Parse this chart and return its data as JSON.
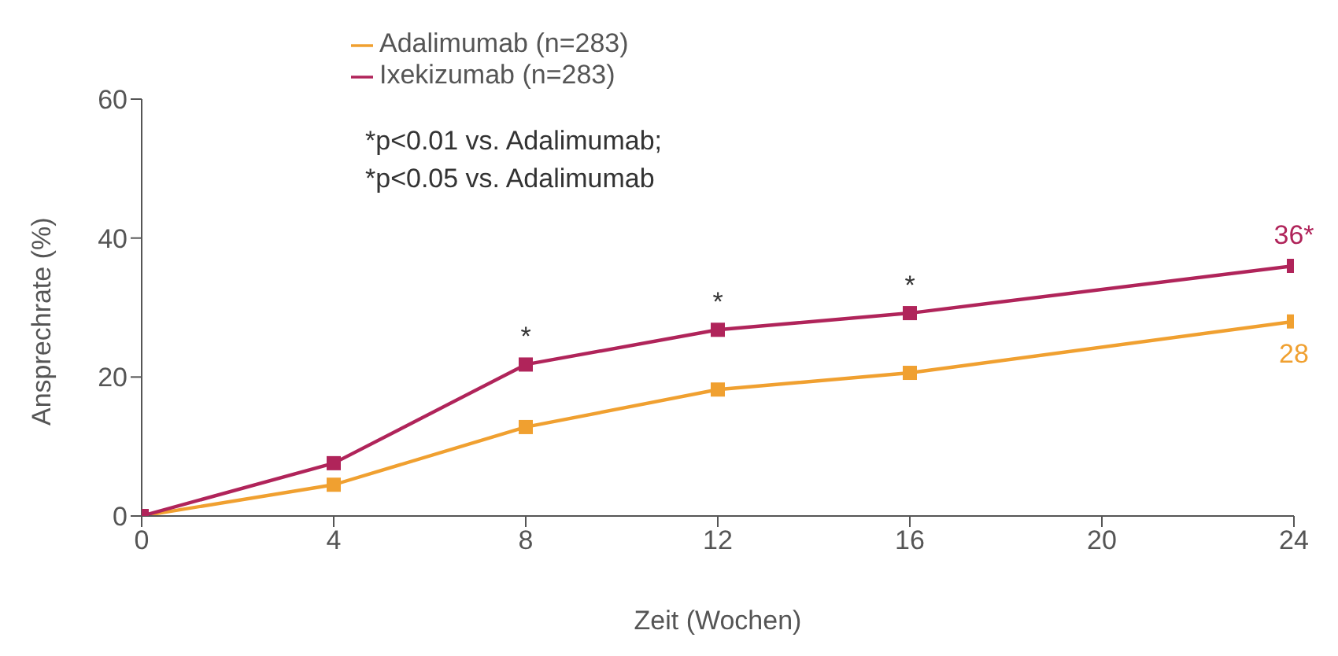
{
  "chart_data": {
    "type": "line",
    "xlabel": "Zeit (Wochen)",
    "ylabel": "Ansprechrate (%)",
    "x": [
      0,
      4,
      8,
      12,
      16,
      24
    ],
    "series": [
      {
        "name": "Adalimumab (n=283)",
        "color": "#f0a030",
        "values": [
          0,
          4.5,
          12.8,
          18.2,
          20.6,
          28
        ],
        "value_labels": [
          null,
          null,
          null,
          null,
          null,
          "28"
        ]
      },
      {
        "name": "Ixekizumab (n=283)",
        "color": "#b0245a",
        "values": [
          0,
          7.6,
          21.8,
          26.8,
          29.2,
          36
        ],
        "value_labels": [
          null,
          null,
          null,
          null,
          null,
          "36*"
        ]
      }
    ],
    "xlim": [
      0,
      24
    ],
    "xticks": [
      0,
      4,
      8,
      12,
      16,
      20,
      24
    ],
    "ylim": [
      0,
      60
    ],
    "yticks": [
      0,
      20,
      40,
      60
    ],
    "grid": false,
    "legend": "top left",
    "marker": "square",
    "line_style": "solid",
    "annotations": [
      "*p<0.01 vs. Adalimumab;",
      "*p<0.05 vs. Adalimumab",
      {
        "text": "*",
        "x": 8,
        "y": 21.8
      },
      {
        "text": "*",
        "x": 12,
        "y": 26.8
      },
      {
        "text": "*",
        "x": 16,
        "y": 29.2
      }
    ]
  }
}
